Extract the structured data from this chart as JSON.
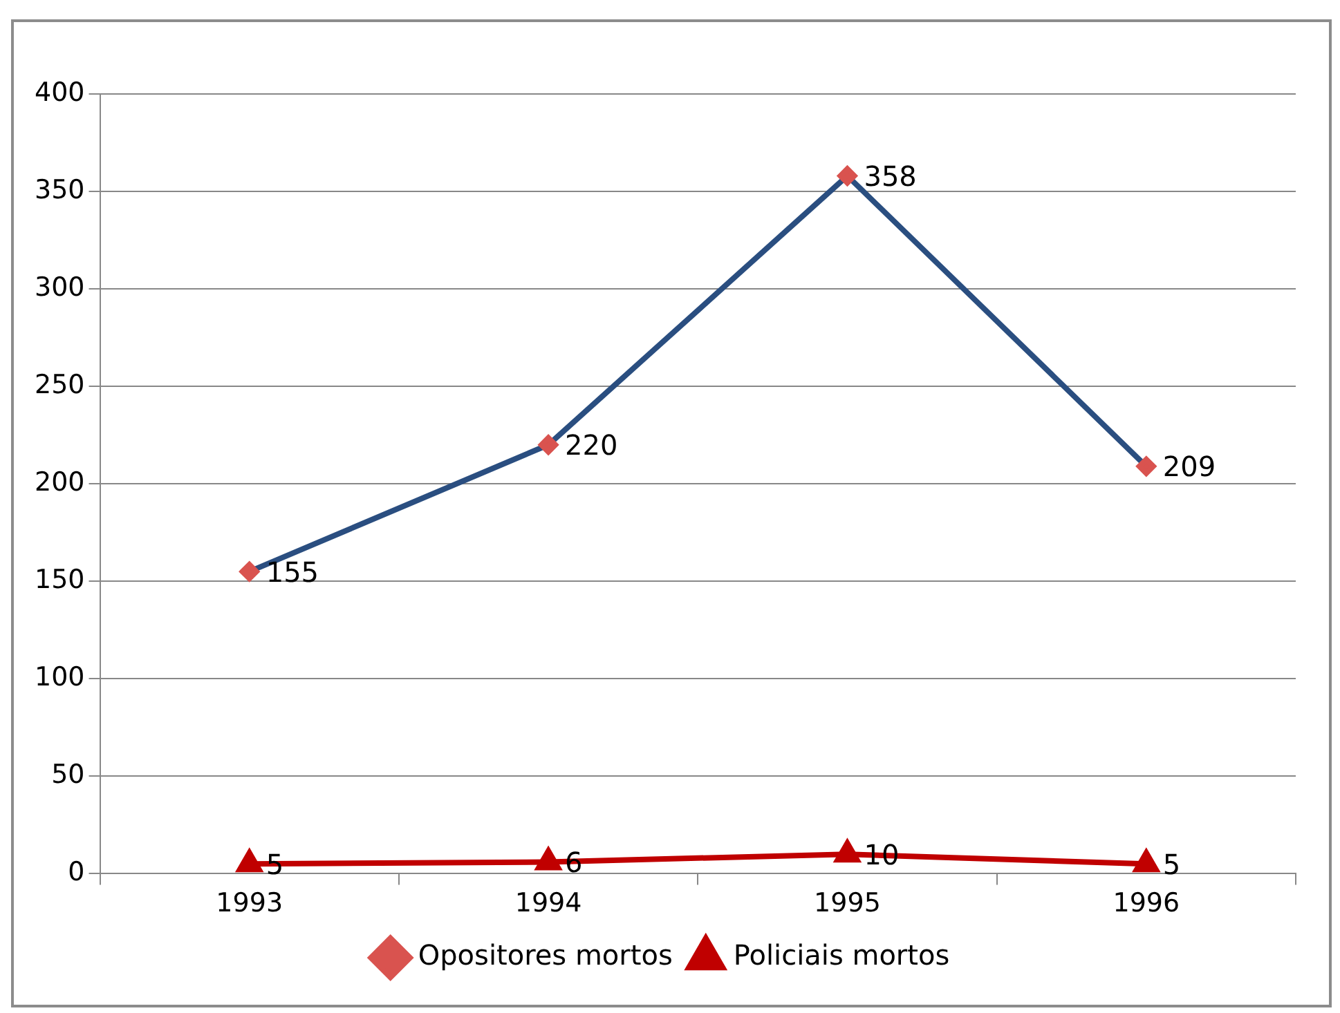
{
  "chart_data": {
    "type": "line",
    "categories": [
      "1993",
      "1994",
      "1995",
      "1996"
    ],
    "series": [
      {
        "name": "Opositores mortos",
        "color": "#2a4e80",
        "values": [
          155,
          220,
          358,
          209
        ],
        "marker": "diamond"
      },
      {
        "name": "Policiais mortos",
        "color": "#c00000",
        "values": [
          5,
          6,
          10,
          5
        ],
        "marker": "triangle"
      }
    ],
    "ylim": [
      0,
      400
    ],
    "yticks": [
      0,
      50,
      100,
      150,
      200,
      250,
      300,
      350,
      400
    ],
    "grid": "y",
    "legend": "bottom",
    "data_labels": true,
    "line_style": "solid"
  }
}
